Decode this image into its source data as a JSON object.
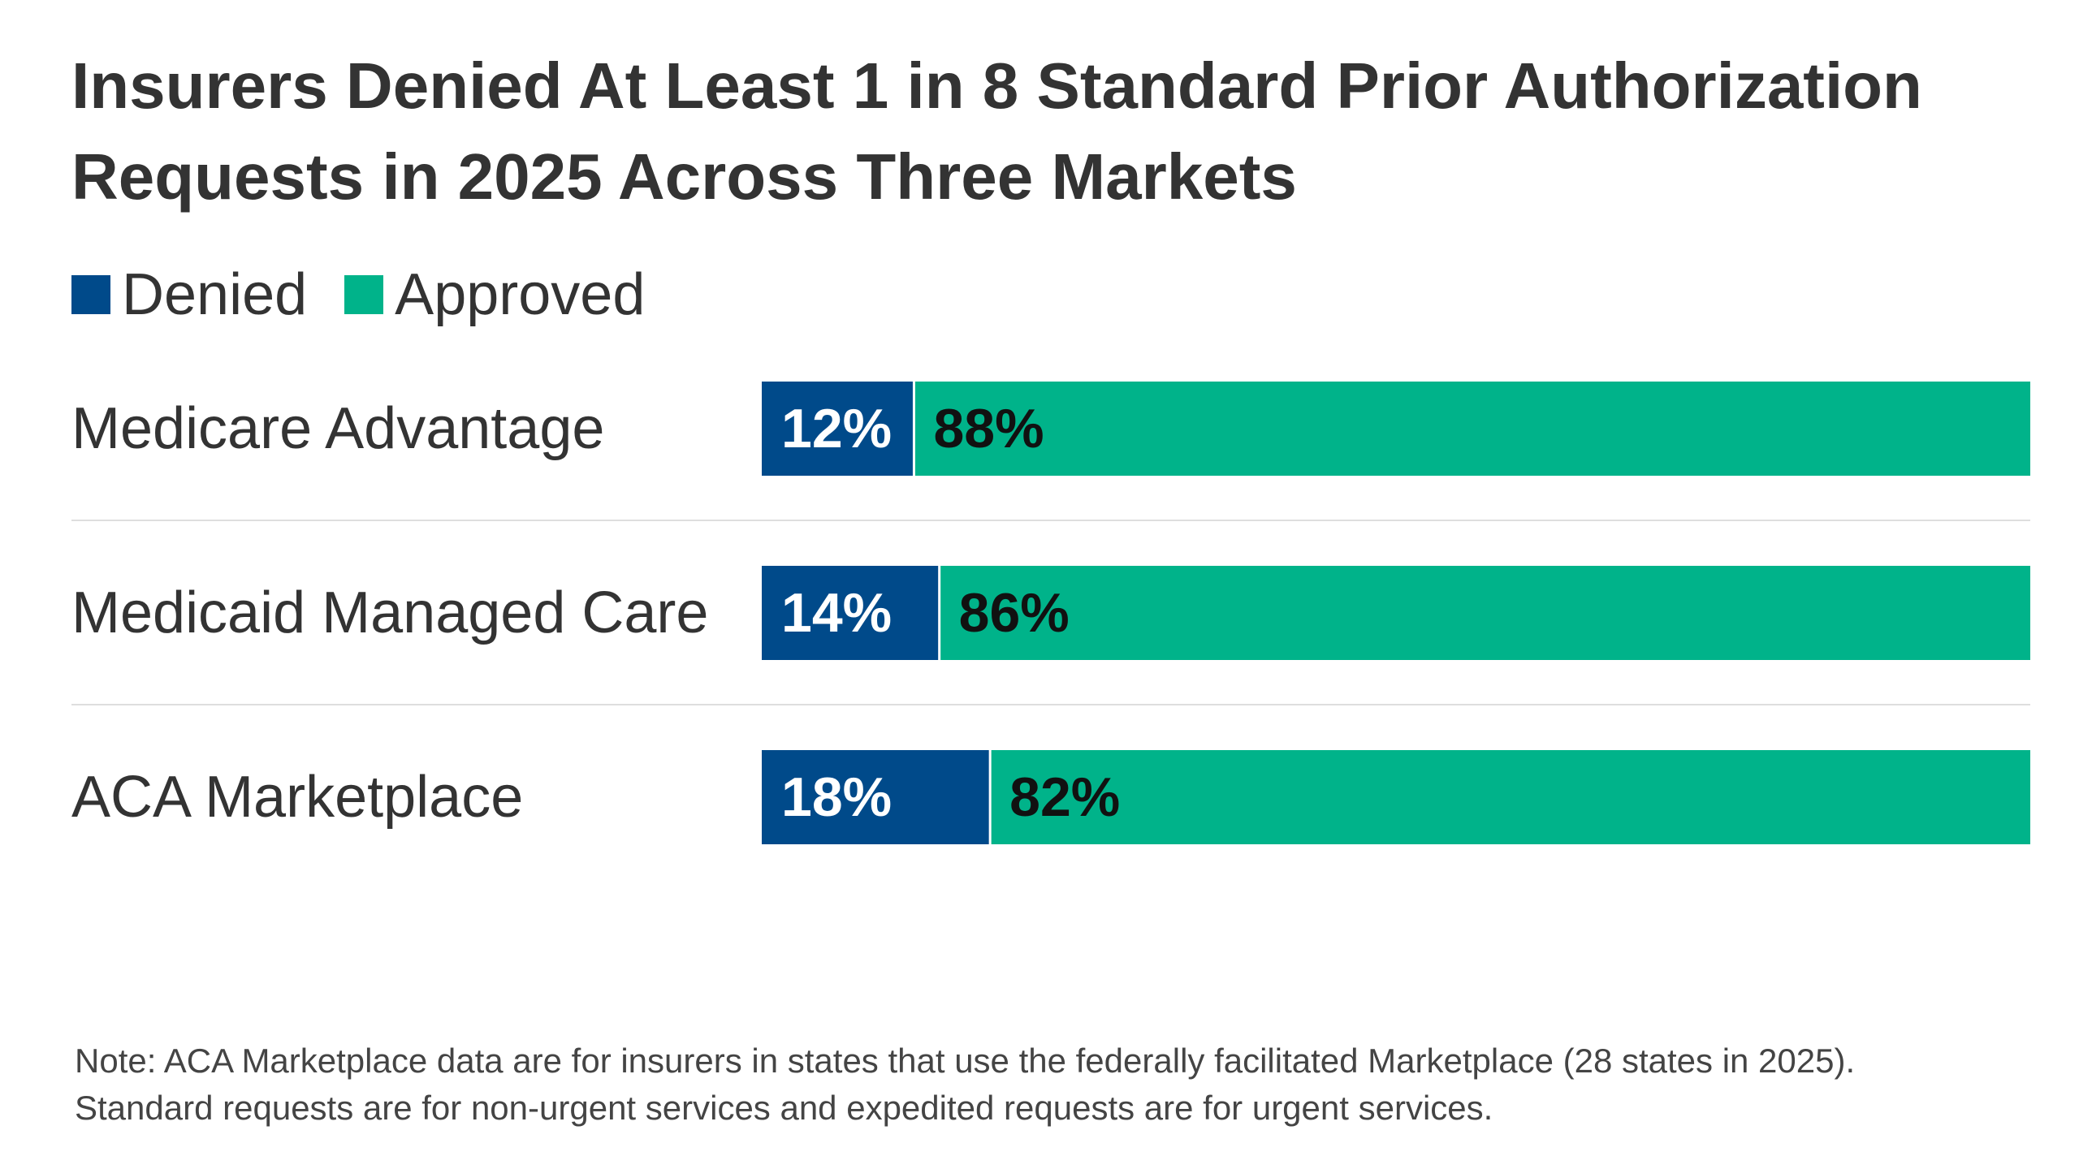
{
  "colors": {
    "denied": "#004a8a",
    "approved": "#00b38a",
    "separator": "#dedede",
    "text": "#333333"
  },
  "chart_data": {
    "type": "bar",
    "orientation": "horizontal",
    "stacked": true,
    "title": "Insurers Denied At Least 1 in 8 Standard Prior Authorization Requests in 2025 Across Three Markets",
    "categories": [
      "Medicare Advantage",
      "Medicaid Managed Care",
      "ACA Marketplace"
    ],
    "series": [
      {
        "name": "Denied",
        "values": [
          12,
          14,
          18
        ],
        "color": "#004a8a"
      },
      {
        "name": "Approved",
        "values": [
          88,
          86,
          82
        ],
        "color": "#00b38a"
      }
    ],
    "value_labels": {
      "Denied": [
        "12%",
        "14%",
        "18%"
      ],
      "Approved": [
        "88%",
        "86%",
        "82%"
      ]
    },
    "xlim": [
      0,
      100
    ],
    "legend_position": "top-left",
    "grid": false
  },
  "note": {
    "line1": "Note: ACA Marketplace data are for insurers in states that use the federally facilitated Marketplace (28 states in 2025).",
    "line2": "Standard requests are for non-urgent services and expedited requests are for urgent services."
  }
}
